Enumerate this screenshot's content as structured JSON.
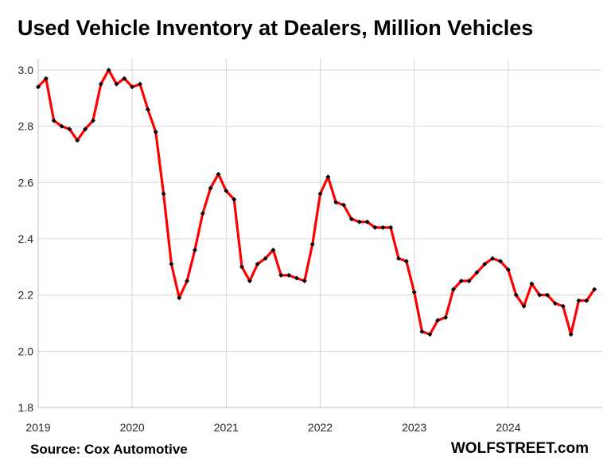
{
  "title": "Used Vehicle Inventory at Dealers, Million Vehicles",
  "source": "Source: Cox Automotive",
  "credit": "WOLFSTREET.com",
  "colors": {
    "line": "#ff0000",
    "marker": "#000000",
    "grid": "#d9d9d9",
    "axis": "#bfbfbf"
  },
  "chart_data": {
    "type": "line",
    "title": "Used Vehicle Inventory at Dealers, Million Vehicles",
    "xlabel": "",
    "ylabel": "",
    "ylim": [
      1.8,
      3.0
    ],
    "yticks": [
      1.8,
      2.0,
      2.2,
      2.4,
      2.6,
      2.8,
      3.0
    ],
    "ytick_labels": [
      "1.8",
      "2.0",
      "2.2",
      "2.4",
      "2.6",
      "2.8",
      "3.0"
    ],
    "xticks": [
      "2019",
      "2020",
      "2021",
      "2022",
      "2023",
      "2024"
    ],
    "xtick_positions": [
      0,
      12,
      24,
      36,
      48,
      60
    ],
    "xlim": [
      0,
      72
    ],
    "grid": true,
    "marker": "diamond",
    "series": [
      {
        "values": [
          2.94,
          2.97,
          2.82,
          2.8,
          2.79,
          2.75,
          2.79,
          2.82,
          2.95,
          3.0,
          2.95,
          2.97,
          2.94,
          2.95,
          2.86,
          2.78,
          2.56,
          2.31,
          2.19,
          2.25,
          2.36,
          2.49,
          2.58,
          2.63,
          2.57,
          2.54,
          2.3,
          2.25,
          2.31,
          2.33,
          2.36,
          2.27,
          2.27,
          2.26,
          2.25,
          2.38,
          2.56,
          2.62,
          2.53,
          2.52,
          2.47,
          2.46,
          2.46,
          2.44,
          2.44,
          2.44,
          2.33,
          2.32,
          2.21,
          2.07,
          2.06,
          2.11,
          2.12,
          2.22,
          2.25,
          2.25,
          2.28,
          2.31,
          2.33,
          2.32,
          2.29,
          2.2,
          2.16,
          2.24,
          2.2,
          2.2,
          2.17,
          2.16,
          2.06,
          2.18,
          2.18,
          2.22
        ]
      }
    ]
  }
}
